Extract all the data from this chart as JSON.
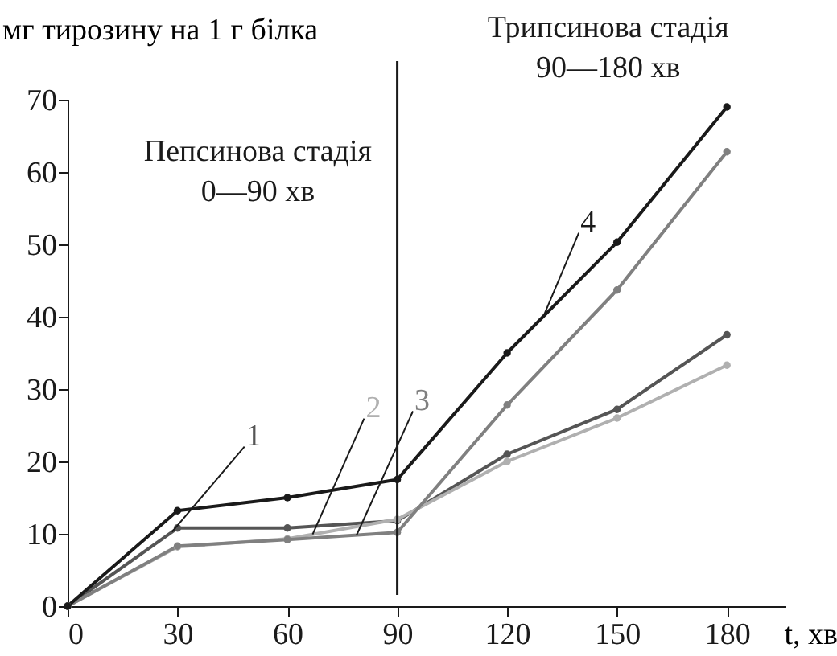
{
  "chart_data": {
    "type": "line",
    "ylabel": "мг тирозину на 1 г білка",
    "xlabel": "t, хв",
    "x": [
      0,
      30,
      60,
      90,
      120,
      150,
      180
    ],
    "series": [
      {
        "name": "1",
        "color": "#555555",
        "values": [
          0,
          10.8,
          10.8,
          11.8,
          21,
          27.2,
          37.5
        ]
      },
      {
        "name": "2",
        "color": "#b0b0b0",
        "values": [
          0,
          8.2,
          9.3,
          12,
          20,
          26,
          33.3
        ]
      },
      {
        "name": "3",
        "color": "#808080",
        "values": [
          0,
          8.3,
          9.2,
          10.2,
          27.8,
          43.7,
          62.8
        ]
      },
      {
        "name": "4",
        "color": "#1a1a1a",
        "values": [
          0,
          13.2,
          15,
          17.5,
          35,
          50.3,
          69
        ]
      }
    ],
    "xlim": [
      0,
      196
    ],
    "ylim": [
      0,
      70
    ],
    "xticks": [
      0,
      30,
      60,
      90,
      120,
      150,
      180
    ],
    "yticks": [
      0,
      10,
      20,
      30,
      40,
      50,
      60,
      70
    ],
    "ref_lines": [
      {
        "axis": "x",
        "value": 90,
        "color": "#1a1a1a"
      }
    ],
    "annotations": [
      "Пепсинова стадія\n0—90 хв",
      "Трипсинова стадія\n90—180 хв"
    ],
    "grid": false,
    "legend": false,
    "marker": "circle",
    "line_style": "solid"
  }
}
